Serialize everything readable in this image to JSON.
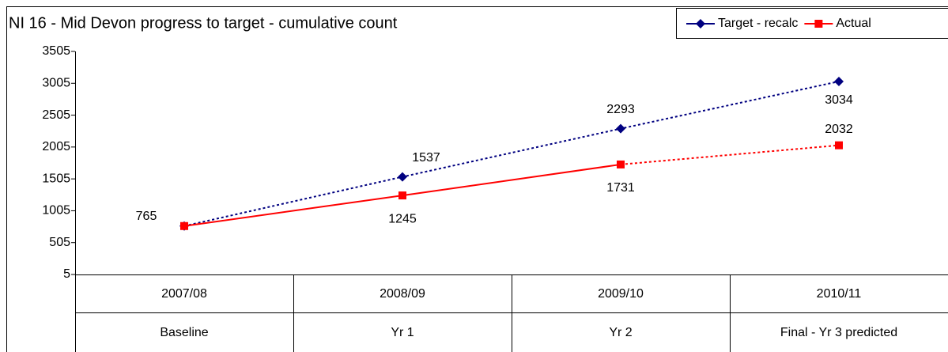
{
  "chart_data": {
    "type": "line",
    "title": "NI 16 - Mid Devon progress to target - cumulative count",
    "categories": [
      "2007/08",
      "2008/09",
      "2009/10",
      "2010/11"
    ],
    "subcategories": [
      "Baseline",
      "Yr 1",
      "Yr 2",
      "Final - Yr 3 predicted"
    ],
    "series": [
      {
        "name": "Target - recalc",
        "color": "#000080",
        "marker": "diamond",
        "dashed_from": 0,
        "show_labels": [
          true,
          true,
          true,
          true
        ],
        "values": [
          765,
          1537,
          2293,
          3034
        ]
      },
      {
        "name": "Actual",
        "color": "#ff0000",
        "marker": "square",
        "dashed_from": 2,
        "show_labels": [
          false,
          true,
          true,
          true
        ],
        "values": [
          765,
          1245,
          1731,
          2032
        ]
      }
    ],
    "ylim": [
      5,
      3505
    ],
    "yticks": [
      5,
      505,
      1005,
      1505,
      2005,
      2505,
      3005,
      3505
    ],
    "grid": false,
    "legend": "top-right"
  }
}
